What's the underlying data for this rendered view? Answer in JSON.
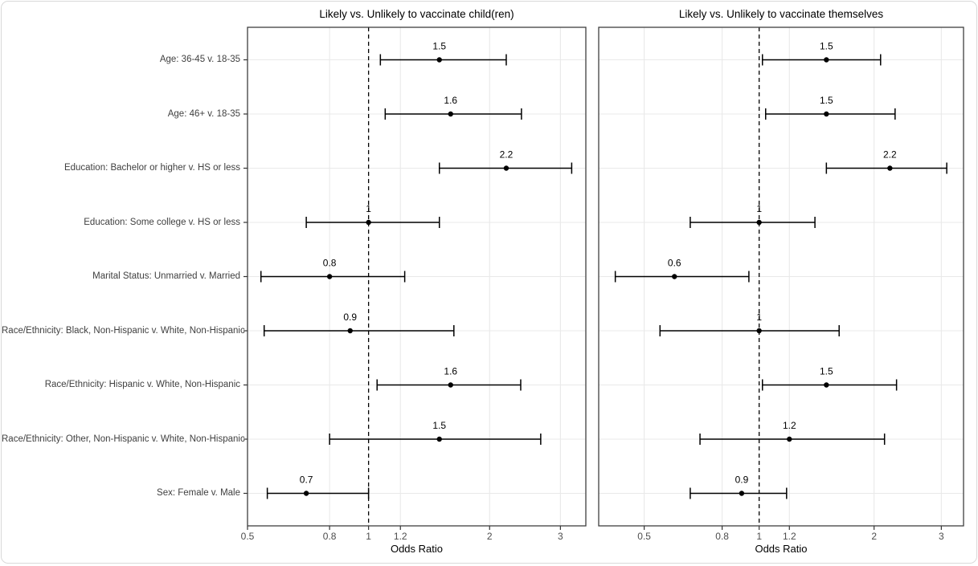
{
  "figure": {
    "background": "#ffffff",
    "card_border_color": "#d9d9d9"
  },
  "chart_data": {
    "type": "forest",
    "x_scale": "log",
    "xlabel": "Odds Ratio",
    "reference_line": 1,
    "x_ticks": [
      0.5,
      0.8,
      1,
      1.2,
      2,
      3
    ],
    "grid": true,
    "legend": "none",
    "categories": [
      "Age: 36-45 v. 18-35",
      "Age: 46+ v. 18-35",
      "Education: Bachelor or higher v. HS or less",
      "Education: Some college v. HS or less",
      "Marital Status: Unmarried v. Married",
      "Race/Ethnicity: Black, Non-Hispanic v. White, Non-Hispanic",
      "Race/Ethnicity: Hispanic v. White, Non-Hispanic",
      "Race/Ethnicity: Other, Non-Hispanic v. White, Non-Hispanic",
      "Sex: Female v. Male"
    ],
    "panels": [
      {
        "title": "Likely vs. Unlikely to vaccinate child(ren)",
        "x_range": [
          0.5,
          3.47
        ],
        "points": [
          {
            "or": 1.5,
            "label": "1.5",
            "ci_low": 1.07,
            "ci_high": 2.2
          },
          {
            "or": 1.6,
            "label": "1.6",
            "ci_low": 1.1,
            "ci_high": 2.4
          },
          {
            "or": 2.2,
            "label": "2.2",
            "ci_low": 1.5,
            "ci_high": 3.2
          },
          {
            "or": 1.0,
            "label": "1",
            "ci_low": 0.7,
            "ci_high": 1.5
          },
          {
            "or": 0.8,
            "label": "0.8",
            "ci_low": 0.54,
            "ci_high": 1.23
          },
          {
            "or": 0.9,
            "label": "0.9",
            "ci_low": 0.55,
            "ci_high": 1.63
          },
          {
            "or": 1.6,
            "label": "1.6",
            "ci_low": 1.05,
            "ci_high": 2.39
          },
          {
            "or": 1.5,
            "label": "1.5",
            "ci_low": 0.8,
            "ci_high": 2.68
          },
          {
            "or": 0.7,
            "label": "0.7",
            "ci_low": 0.56,
            "ci_high": 1.0
          }
        ]
      },
      {
        "title": "Likely vs. Unlikely to vaccinate themselves",
        "x_range": [
          0.38,
          3.43
        ],
        "points": [
          {
            "or": 1.5,
            "label": "1.5",
            "ci_low": 1.02,
            "ci_high": 2.08
          },
          {
            "or": 1.5,
            "label": "1.5",
            "ci_low": 1.04,
            "ci_high": 2.27
          },
          {
            "or": 2.2,
            "label": "2.2",
            "ci_low": 1.5,
            "ci_high": 3.1
          },
          {
            "or": 1.0,
            "label": "1",
            "ci_low": 0.66,
            "ci_high": 1.4
          },
          {
            "or": 0.6,
            "label": "0.6",
            "ci_low": 0.42,
            "ci_high": 0.94
          },
          {
            "or": 1.0,
            "label": "1",
            "ci_low": 0.55,
            "ci_high": 1.62
          },
          {
            "or": 1.5,
            "label": "1.5",
            "ci_low": 1.02,
            "ci_high": 2.29
          },
          {
            "or": 1.2,
            "label": "1.2",
            "ci_low": 0.7,
            "ci_high": 2.13
          },
          {
            "or": 0.9,
            "label": "0.9",
            "ci_low": 0.66,
            "ci_high": 1.18
          }
        ]
      }
    ],
    "style": {
      "point_color": "#000000",
      "ci_color": "#000000",
      "value_label_color": "#000000",
      "reference_line_color": "#000000",
      "grid_color": "#e9e9e9",
      "panel_border_color": "#3f3f3f",
      "axis_tick_color": "#333333",
      "axis_text_color": "#4d4d4d",
      "title_color": "#000000"
    }
  }
}
